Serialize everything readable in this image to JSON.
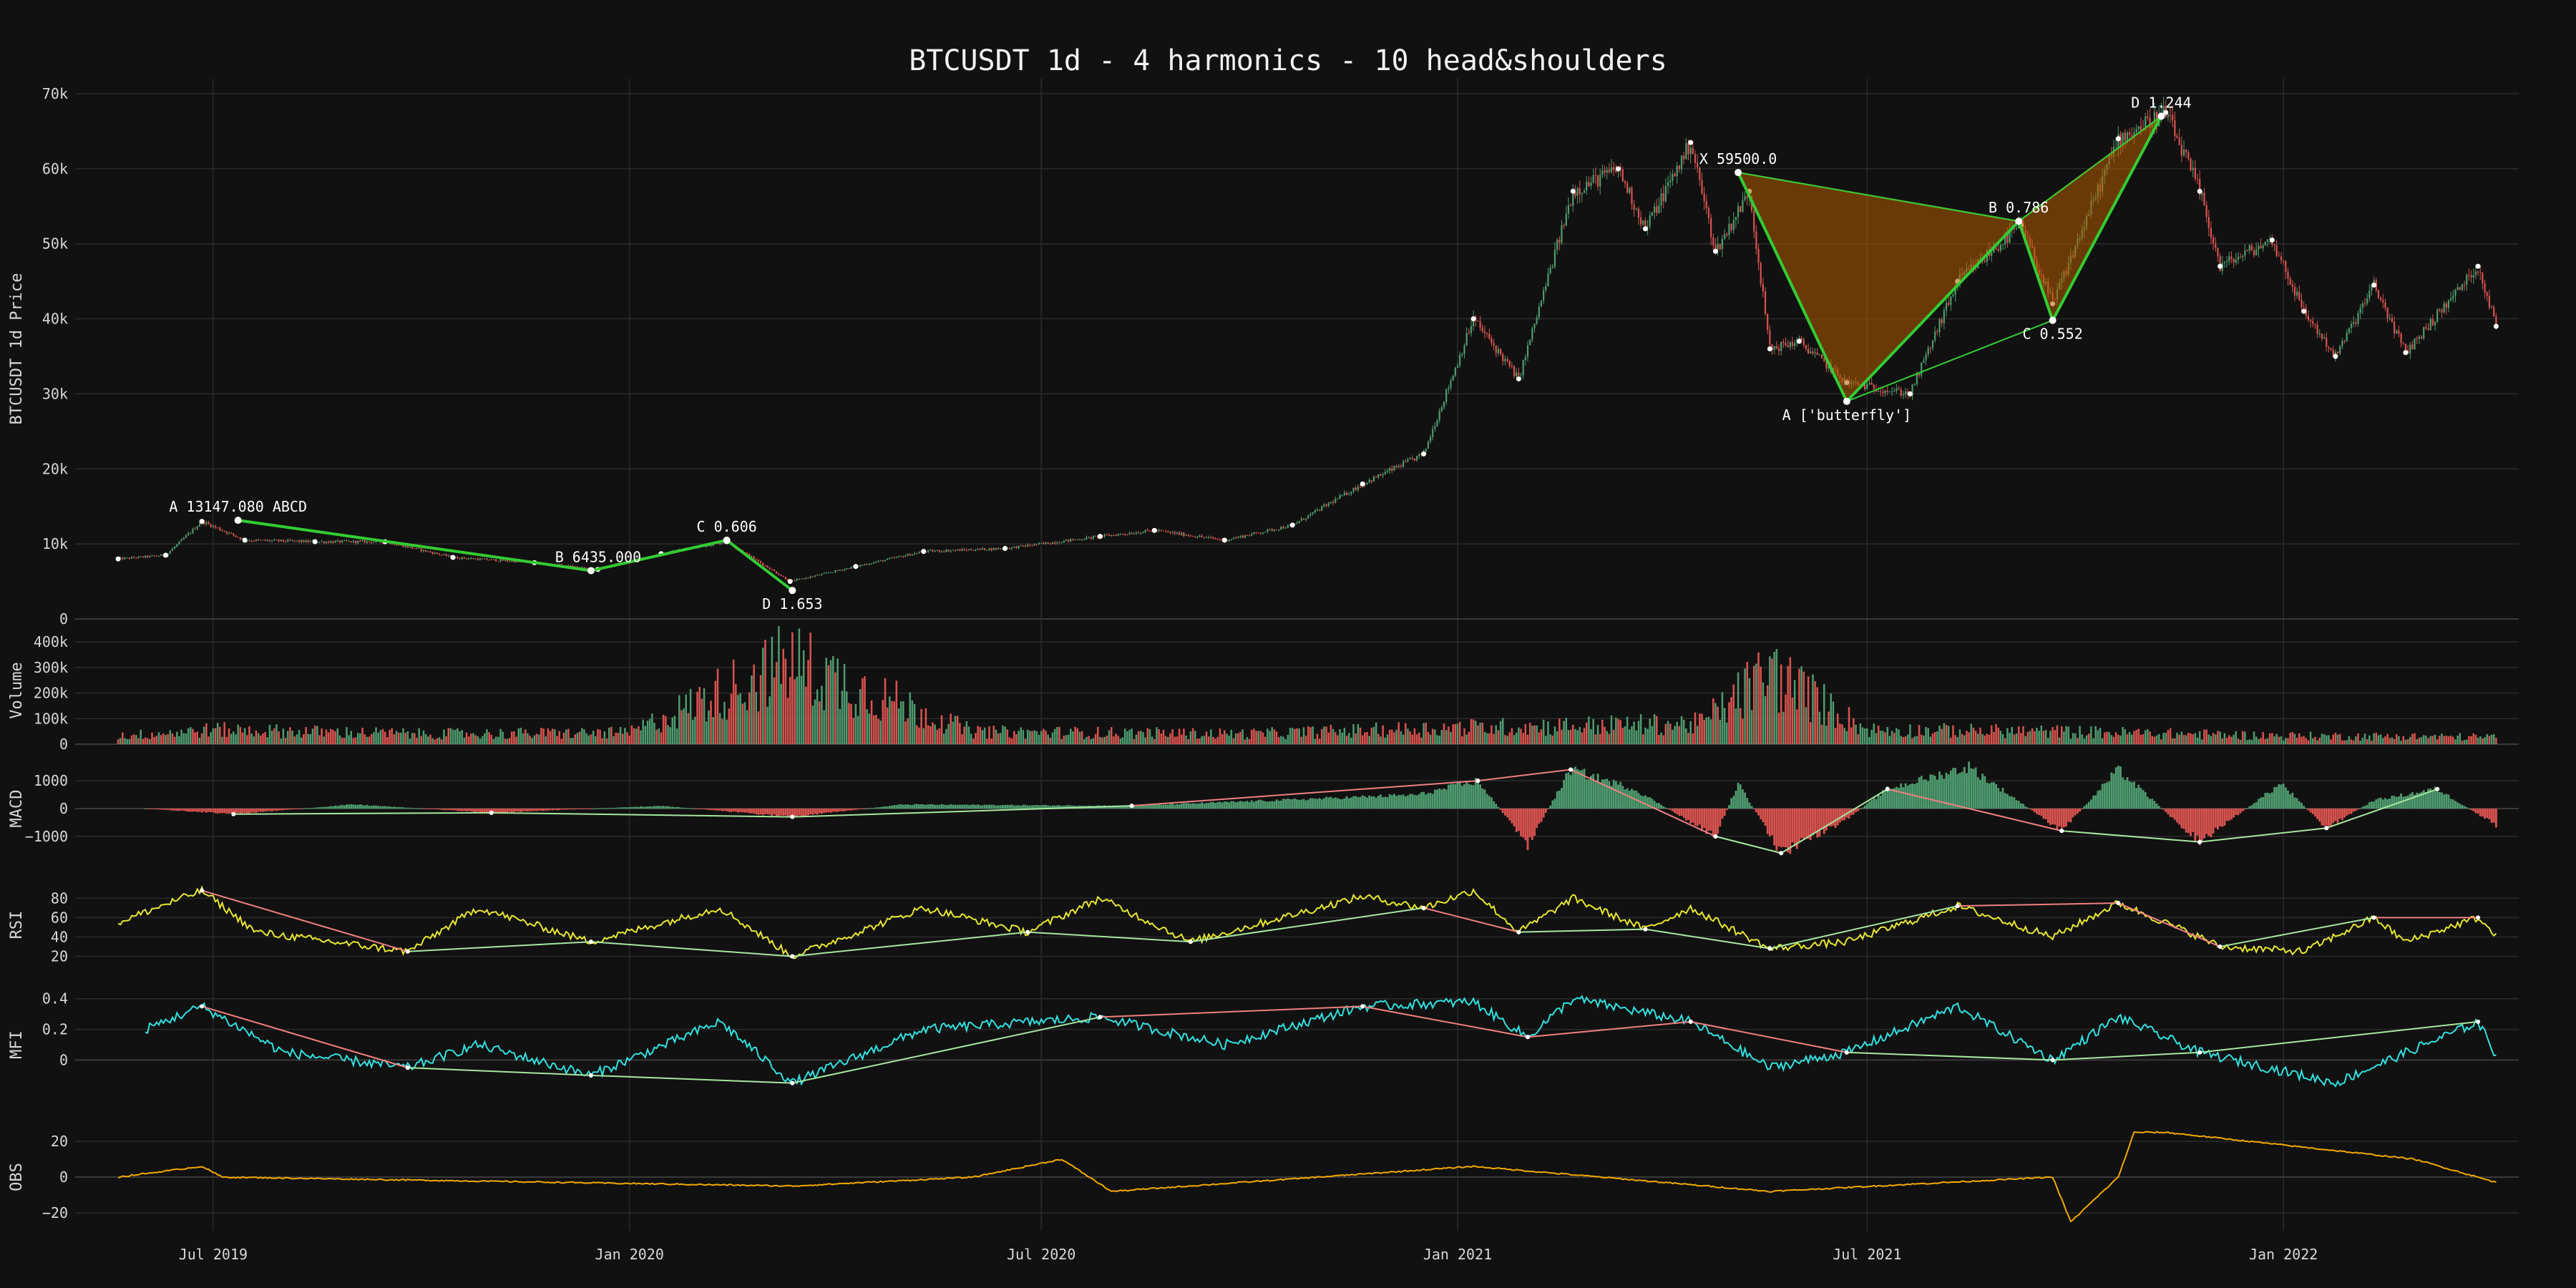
{
  "chart_data": {
    "type": "line",
    "title": "BTCUSDT 1d  -  4 harmonics  -  10 head&shoulders",
    "x_range": [
      "2019-05-01",
      "2022-04-15"
    ],
    "x_ticks": [
      "Jul 2019",
      "Jan 2020",
      "Jul 2020",
      "Jan 2021",
      "Jul 2021",
      "Jan 2022"
    ],
    "x_tick_dates": [
      "2019-07-01",
      "2020-01-01",
      "2020-07-01",
      "2021-01-01",
      "2021-07-01",
      "2022-01-01"
    ],
    "colors": {
      "background": "#111111",
      "up": "#4e9a6e",
      "down": "#d9534f",
      "pattern_line": "#33cc33",
      "butterfly_fill": "#b35c00",
      "rsi": "#e6e633",
      "mfi": "#33e0e0",
      "obs": "#f2a900",
      "div_bear": "#f08080",
      "div_bull": "#a8e6a0"
    },
    "panels": [
      {
        "name": "price",
        "ylabel": "BTCUSDT 1d Price",
        "ylim": [
          0,
          72000
        ],
        "y_ticks": [
          0,
          10000,
          20000,
          30000,
          40000,
          50000,
          60000,
          70000
        ],
        "y_tick_labels": [
          "0",
          "10k",
          "20k",
          "30k",
          "40k",
          "50k",
          "60k",
          "70k"
        ],
        "series": [
          {
            "type": "candlestick-close",
            "points": [
              [
                "2019-05-20",
                8000
              ],
              [
                "2019-06-10",
                8500
              ],
              [
                "2019-06-26",
                13000
              ],
              [
                "2019-07-15",
                10500
              ],
              [
                "2019-08-15",
                10300
              ],
              [
                "2019-09-15",
                10300
              ],
              [
                "2019-10-15",
                8200
              ],
              [
                "2019-11-20",
                7500
              ],
              [
                "2019-12-18",
                6600
              ],
              [
                "2020-01-15",
                8700
              ],
              [
                "2020-02-13",
                10300
              ],
              [
                "2020-03-12",
                5000
              ],
              [
                "2020-04-10",
                7000
              ],
              [
                "2020-05-10",
                9000
              ],
              [
                "2020-06-15",
                9400
              ],
              [
                "2020-07-27",
                11000
              ],
              [
                "2020-08-20",
                11800
              ],
              [
                "2020-09-20",
                10500
              ],
              [
                "2020-10-20",
                12500
              ],
              [
                "2020-11-20",
                18000
              ],
              [
                "2020-12-17",
                22000
              ],
              [
                "2021-01-08",
                40000
              ],
              [
                "2021-01-28",
                32000
              ],
              [
                "2021-02-21",
                57000
              ],
              [
                "2021-03-13",
                60000
              ],
              [
                "2021-03-25",
                52000
              ],
              [
                "2021-04-14",
                63500
              ],
              [
                "2021-04-25",
                49000
              ],
              [
                "2021-05-10",
                57000
              ],
              [
                "2021-05-19",
                36000
              ],
              [
                "2021-06-01",
                37000
              ],
              [
                "2021-06-22",
                31500
              ],
              [
                "2021-07-20",
                30000
              ],
              [
                "2021-08-10",
                45000
              ],
              [
                "2021-09-07",
                52500
              ],
              [
                "2021-09-21",
                42000
              ],
              [
                "2021-10-20",
                64000
              ],
              [
                "2021-11-10",
                67500
              ],
              [
                "2021-11-25",
                57000
              ],
              [
                "2021-12-04",
                47000
              ],
              [
                "2021-12-27",
                50500
              ],
              [
                "2022-01-10",
                41000
              ],
              [
                "2022-01-24",
                35000
              ],
              [
                "2022-02-10",
                44500
              ],
              [
                "2022-02-24",
                35500
              ],
              [
                "2022-03-28",
                47000
              ],
              [
                "2022-04-05",
                39000
              ]
            ]
          }
        ],
        "harmonic_patterns": [
          {
            "label": "ABCD",
            "points": [
              [
                "A",
                "2019-07-12",
                13147.08,
                "A 13147.080 ABCD"
              ],
              [
                "B",
                "2019-12-15",
                6435,
                "B 6435.000"
              ],
              [
                "C",
                "2020-02-13",
                10500,
                "C 0.606"
              ],
              [
                "D",
                "2020-03-13",
                3800,
                "D 1.653"
              ]
            ]
          },
          {
            "label": "butterfly",
            "points": [
              [
                "X",
                "2021-05-05",
                59500,
                "X 59500.0"
              ],
              [
                "A",
                "2021-06-22",
                29000,
                "A ['butterfly']"
              ],
              [
                "B",
                "2021-09-06",
                53000,
                "B 0.786"
              ],
              [
                "C",
                "2021-09-21",
                39800,
                "C 0.552"
              ],
              [
                "D",
                "2021-11-08",
                67000,
                "D 1.244"
              ]
            ]
          }
        ]
      },
      {
        "name": "volume",
        "ylabel": "Volume",
        "ylim": [
          0,
          420000
        ],
        "y_ticks": [
          0,
          100000,
          200000,
          300000,
          400000
        ],
        "y_tick_labels": [
          "0",
          "100k",
          "200k",
          "300k",
          "400k"
        ],
        "series": [
          {
            "type": "bar",
            "points": [
              [
                "2019-05-20",
                40000
              ],
              [
                "2019-07-01",
                70000
              ],
              [
                "2019-10-01",
                50000
              ],
              [
                "2020-01-01",
                55000
              ],
              [
                "2020-03-12",
                400000
              ],
              [
                "2020-06-01",
                60000
              ],
              [
                "2020-10-01",
                50000
              ],
              [
                "2021-01-01",
                80000
              ],
              [
                "2021-04-18",
                100000
              ],
              [
                "2021-05-19",
                350000
              ],
              [
                "2021-07-01",
                70000
              ],
              [
                "2021-10-01",
                60000
              ],
              [
                "2022-01-01",
                40000
              ],
              [
                "2022-04-05",
                35000
              ]
            ]
          }
        ]
      },
      {
        "name": "macd",
        "ylabel": "MACD",
        "ylim": [
          -1800,
          1800
        ],
        "y_ticks": [
          -1000,
          0,
          1000
        ],
        "y_tick_labels": [
          "−1000",
          "0",
          "1000"
        ],
        "series": [
          {
            "type": "histogram",
            "points": [
              [
                "2019-06-01",
                0
              ],
              [
                "2019-07-10",
                -200
              ],
              [
                "2019-09-01",
                150
              ],
              [
                "2019-11-01",
                -150
              ],
              [
                "2020-01-15",
                100
              ],
              [
                "2020-03-13",
                -300
              ],
              [
                "2020-05-01",
                150
              ],
              [
                "2020-08-10",
                100
              ],
              [
                "2020-12-15",
                500
              ],
              [
                "2021-01-10",
                1000
              ],
              [
                "2021-02-01",
                -1300
              ],
              [
                "2021-02-20",
                1400
              ],
              [
                "2021-03-20",
                700
              ],
              [
                "2021-04-25",
                -1000
              ],
              [
                "2021-05-05",
                900
              ],
              [
                "2021-05-24",
                -1600
              ],
              [
                "2021-06-20",
                -500
              ],
              [
                "2021-07-10",
                700
              ],
              [
                "2021-08-15",
                1500
              ],
              [
                "2021-09-25",
                -800
              ],
              [
                "2021-10-20",
                1400
              ],
              [
                "2021-11-25",
                -1200
              ],
              [
                "2021-12-31",
                900
              ],
              [
                "2022-01-20",
                -700
              ],
              [
                "2022-02-10",
                300
              ],
              [
                "2022-03-10",
                700
              ],
              [
                "2022-04-05",
                -600
              ]
            ]
          }
        ]
      },
      {
        "name": "rsi",
        "ylabel": "RSI",
        "ylim": [
          10,
          95
        ],
        "y_ticks": [
          20,
          40,
          60,
          80
        ],
        "y_tick_labels": [
          "20",
          "40",
          "60",
          "80"
        ],
        "series": [
          {
            "type": "line",
            "points": [
              [
                "2019-05-20",
                55
              ],
              [
                "2019-06-26",
                88
              ],
              [
                "2019-07-20",
                45
              ],
              [
                "2019-09-25",
                25
              ],
              [
                "2019-10-26",
                70
              ],
              [
                "2019-12-15",
                35
              ],
              [
                "2020-02-10",
                70
              ],
              [
                "2020-03-13",
                20
              ],
              [
                "2020-05-10",
                70
              ],
              [
                "2020-06-25",
                45
              ],
              [
                "2020-07-27",
                80
              ],
              [
                "2020-09-05",
                35
              ],
              [
                "2020-11-20",
                82
              ],
              [
                "2020-12-17",
                70
              ],
              [
                "2021-01-08",
                88
              ],
              [
                "2021-01-28",
                45
              ],
              [
                "2021-02-21",
                80
              ],
              [
                "2021-03-25",
                48
              ],
              [
                "2021-04-14",
                70
              ],
              [
                "2021-05-19",
                28
              ],
              [
                "2021-06-22",
                35
              ],
              [
                "2021-08-10",
                72
              ],
              [
                "2021-09-21",
                40
              ],
              [
                "2021-10-20",
                75
              ],
              [
                "2021-11-25",
                40
              ],
              [
                "2021-12-04",
                30
              ],
              [
                "2022-01-10",
                25
              ],
              [
                "2022-02-10",
                60
              ],
              [
                "2022-02-24",
                35
              ],
              [
                "2022-03-28",
                60
              ],
              [
                "2022-04-05",
                40
              ]
            ]
          }
        ]
      },
      {
        "name": "mfi",
        "ylabel": "MFI",
        "ylim": [
          -0.25,
          0.45
        ],
        "y_ticks": [
          0,
          0.2,
          0.4
        ],
        "y_tick_labels": [
          "0",
          "0.2",
          "0.4"
        ],
        "series": [
          {
            "type": "line",
            "points": [
              [
                "2019-06-01",
                0.2
              ],
              [
                "2019-06-26",
                0.35
              ],
              [
                "2019-08-01",
                0.05
              ],
              [
                "2019-09-25",
                -0.05
              ],
              [
                "2019-10-26",
                0.1
              ],
              [
                "2019-12-15",
                -0.1
              ],
              [
                "2020-02-10",
                0.25
              ],
              [
                "2020-03-13",
                -0.15
              ],
              [
                "2020-05-10",
                0.2
              ],
              [
                "2020-07-27",
                0.28
              ],
              [
                "2020-09-20",
                0.1
              ],
              [
                "2020-11-20",
                0.35
              ],
              [
                "2021-01-08",
                0.38
              ],
              [
                "2021-02-01",
                0.15
              ],
              [
                "2021-02-21",
                0.4
              ],
              [
                "2021-04-14",
                0.25
              ],
              [
                "2021-05-19",
                -0.05
              ],
              [
                "2021-06-22",
                0.05
              ],
              [
                "2021-08-10",
                0.35
              ],
              [
                "2021-09-21",
                0.0
              ],
              [
                "2021-10-20",
                0.28
              ],
              [
                "2021-11-25",
                0.05
              ],
              [
                "2022-01-24",
                -0.15
              ],
              [
                "2022-03-28",
                0.25
              ],
              [
                "2022-04-05",
                0.03
              ]
            ]
          }
        ]
      },
      {
        "name": "obs",
        "ylabel": "OBS",
        "ylim": [
          -30,
          30
        ],
        "y_ticks": [
          -20,
          0,
          20
        ],
        "y_tick_labels": [
          "−20",
          "0",
          "20"
        ],
        "series": [
          {
            "type": "line",
            "points": [
              [
                "2019-05-20",
                0
              ],
              [
                "2019-06-26",
                6
              ],
              [
                "2019-07-05",
                0
              ],
              [
                "2020-03-13",
                -5
              ],
              [
                "2020-06-01",
                0
              ],
              [
                "2020-07-10",
                10
              ],
              [
                "2020-08-01",
                -8
              ],
              [
                "2021-01-08",
                6
              ],
              [
                "2021-05-19",
                -8
              ],
              [
                "2021-09-21",
                0
              ],
              [
                "2021-09-29",
                -25
              ],
              [
                "2021-10-20",
                0
              ],
              [
                "2021-10-27",
                25
              ],
              [
                "2021-11-10",
                25
              ],
              [
                "2022-02-28",
                10
              ],
              [
                "2022-04-05",
                -3
              ]
            ]
          }
        ]
      }
    ],
    "grid": true,
    "legend": "none"
  }
}
